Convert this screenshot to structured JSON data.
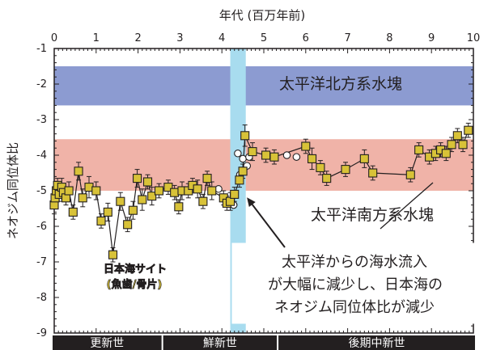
{
  "chart_data": {
    "type": "scatter",
    "xlabel": "年代 (百万年前)",
    "ylabel": "ネオジム同位体比",
    "xlim": [
      0,
      10
    ],
    "ylim": [
      -9,
      -1
    ],
    "y_inverted": true,
    "xticks": [
      "0",
      "1",
      "2",
      "3",
      "4",
      "5",
      "6",
      "7",
      "8",
      "9",
      "10"
    ],
    "yticks": [
      "-1",
      "-2",
      "-3",
      "-4",
      "-5",
      "-6",
      "-7",
      "-8",
      "-9"
    ],
    "bands": [
      {
        "label": "太平洋北方系水塊",
        "y_range": [
          -1.5,
          -2.6
        ],
        "color": "#8c9bd1"
      },
      {
        "label": "太平洋南方系水塊",
        "y_range": [
          -3.55,
          -5.0
        ],
        "color": "#f0b3a8"
      }
    ],
    "highlight": {
      "x_range": [
        4.2,
        4.57
      ],
      "color": "#a8dcef"
    },
    "series": [
      {
        "name": "日本海サイト (魚歯/骨片)",
        "marker": "square",
        "color": "#d8c238",
        "points": [
          {
            "x": 0.0,
            "y": -5.4,
            "err": 0.25
          },
          {
            "x": 0.02,
            "y": -5.2,
            "err": 0.2
          },
          {
            "x": 0.05,
            "y": -5.0,
            "err": 0.25
          },
          {
            "x": 0.08,
            "y": -4.85,
            "err": 0.2
          },
          {
            "x": 0.12,
            "y": -5.1,
            "err": 0.2
          },
          {
            "x": 0.18,
            "y": -4.9,
            "err": 0.25
          },
          {
            "x": 0.22,
            "y": -5.05,
            "err": 0.2
          },
          {
            "x": 0.28,
            "y": -5.2,
            "err": 0.2
          },
          {
            "x": 0.35,
            "y": -5.0,
            "err": 0.25
          },
          {
            "x": 0.45,
            "y": -5.6,
            "err": 0.2
          },
          {
            "x": 0.58,
            "y": -4.45,
            "err": 0.25
          },
          {
            "x": 0.68,
            "y": -5.2,
            "err": 0.25
          },
          {
            "x": 0.83,
            "y": -4.9,
            "err": 0.3
          },
          {
            "x": 1.0,
            "y": -5.0,
            "err": 0.25
          },
          {
            "x": 1.12,
            "y": -5.85,
            "err": 0.2
          },
          {
            "x": 1.28,
            "y": -5.6,
            "err": 0.25
          },
          {
            "x": 1.4,
            "y": -6.8,
            "err": 0.2
          },
          {
            "x": 1.58,
            "y": -5.3,
            "err": 0.25
          },
          {
            "x": 1.75,
            "y": -5.95,
            "err": 0.2
          },
          {
            "x": 1.88,
            "y": -5.55,
            "err": 0.25
          },
          {
            "x": 1.98,
            "y": -4.65,
            "err": 0.25
          },
          {
            "x": 2.1,
            "y": -5.25,
            "err": 0.3
          },
          {
            "x": 2.23,
            "y": -4.75,
            "err": 0.2
          },
          {
            "x": 2.33,
            "y": -5.15,
            "err": 0.25
          },
          {
            "x": 2.5,
            "y": -5.0,
            "err": 0.2
          },
          {
            "x": 2.72,
            "y": -4.9,
            "err": 0.2
          },
          {
            "x": 2.87,
            "y": -5.05,
            "err": 0.2
          },
          {
            "x": 2.97,
            "y": -5.45,
            "err": 0.2
          },
          {
            "x": 3.05,
            "y": -5.0,
            "err": 0.25
          },
          {
            "x": 3.2,
            "y": -5.0,
            "err": 0.2
          },
          {
            "x": 3.3,
            "y": -4.85,
            "err": 0.2
          },
          {
            "x": 3.42,
            "y": -4.95,
            "err": 0.25
          },
          {
            "x": 3.55,
            "y": -5.3,
            "err": 0.2
          },
          {
            "x": 3.65,
            "y": -4.65,
            "err": 0.2
          },
          {
            "x": 3.76,
            "y": -5.0,
            "err": 0.25
          },
          {
            "x": 4.04,
            "y": -5.2,
            "err": 0.2
          },
          {
            "x": 4.12,
            "y": -5.35,
            "err": 0.2
          },
          {
            "x": 4.2,
            "y": -5.3,
            "err": 0.25
          },
          {
            "x": 4.3,
            "y": -5.1,
            "err": 0.2
          },
          {
            "x": 4.42,
            "y": -4.7,
            "err": 0.2
          },
          {
            "x": 4.5,
            "y": -4.45,
            "err": 0.2
          },
          {
            "x": 4.55,
            "y": -3.45,
            "err": 0.3
          },
          {
            "x": 4.73,
            "y": -3.9,
            "err": 0.25
          },
          {
            "x": 5.05,
            "y": -4.0,
            "err": 0.2
          },
          {
            "x": 5.25,
            "y": -4.05,
            "err": 0.2
          },
          {
            "x": 6.0,
            "y": -3.75,
            "err": 0.2
          },
          {
            "x": 6.15,
            "y": -4.1,
            "err": 0.3
          },
          {
            "x": 6.35,
            "y": -4.35,
            "err": 0.2
          },
          {
            "x": 6.5,
            "y": -4.65,
            "err": 0.2
          },
          {
            "x": 6.95,
            "y": -4.4,
            "err": 0.2
          },
          {
            "x": 7.4,
            "y": -4.1,
            "err": 0.25
          },
          {
            "x": 7.6,
            "y": -4.5,
            "err": 0.2
          },
          {
            "x": 8.5,
            "y": -4.55,
            "err": 0.2
          },
          {
            "x": 8.7,
            "y": -3.85,
            "err": 0.2
          },
          {
            "x": 8.95,
            "y": -4.05,
            "err": 0.2
          },
          {
            "x": 9.1,
            "y": -3.95,
            "err": 0.2
          },
          {
            "x": 9.22,
            "y": -3.85,
            "err": 0.2
          },
          {
            "x": 9.35,
            "y": -3.95,
            "err": 0.2
          },
          {
            "x": 9.48,
            "y": -3.7,
            "err": 0.2
          },
          {
            "x": 9.62,
            "y": -3.45,
            "err": 0.2
          },
          {
            "x": 9.75,
            "y": -3.7,
            "err": 0.2
          },
          {
            "x": 9.88,
            "y": -3.3,
            "err": 0.2
          }
        ]
      },
      {
        "name": "",
        "marker": "circle",
        "color": "#ffffff",
        "points": [
          {
            "x": 3.92,
            "y": -4.95
          },
          {
            "x": 4.28,
            "y": -5.4
          },
          {
            "x": 4.38,
            "y": -3.95
          },
          {
            "x": 4.43,
            "y": -4.55
          },
          {
            "x": 4.5,
            "y": -4.1
          },
          {
            "x": 4.6,
            "y": -4.3
          },
          {
            "x": 4.65,
            "y": -4.05
          },
          {
            "x": 5.55,
            "y": -4.0
          },
          {
            "x": 5.78,
            "y": -4.05
          }
        ]
      }
    ],
    "epochs": [
      {
        "label": "更新世",
        "x_range": [
          0,
          2.58
        ]
      },
      {
        "label": "鮮新世",
        "x_range": [
          2.58,
          5.33
        ]
      },
      {
        "label": "後期中新世",
        "x_range": [
          5.33,
          10
        ]
      }
    ],
    "annotations": {
      "site_label_line1": "日本海サイト",
      "site_label_line2": "(魚歯/骨片)",
      "note_line1": "太平洋からの海水流入",
      "note_line2": "が大幅に減少し、日本海の",
      "note_line3": "ネオジム同位体比が減少",
      "note_arrow_target": {
        "x": 4.52,
        "y": -5.05
      }
    }
  }
}
